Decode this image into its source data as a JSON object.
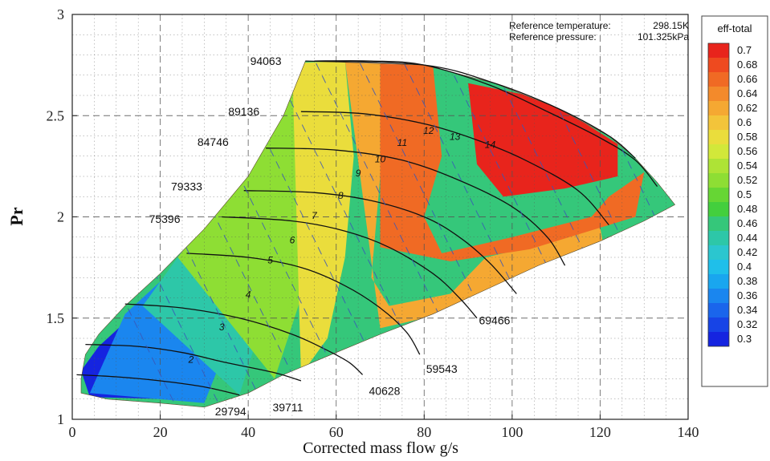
{
  "chart_data": {
    "type": "contour",
    "xlabel": "Corrected mass flow g/s",
    "ylabel": "Pr",
    "xlim": [
      0,
      140
    ],
    "ylim": [
      1,
      3
    ],
    "xticks": [
      "0",
      "20",
      "40",
      "60",
      "80",
      "100",
      "120",
      "140"
    ],
    "yticks": [
      "1",
      "1.5",
      "2",
      "2.5",
      "3"
    ],
    "grid": true,
    "annotations": [
      {
        "label": "Reference temperature:",
        "value": "298.15K"
      },
      {
        "label": "Reference pressure:",
        "value": "101.325kPa"
      }
    ],
    "colorbar": {
      "title": "eff-total",
      "levels": [
        "0.7",
        "0.68",
        "0.66",
        "0.64",
        "0.62",
        "0.6",
        "0.58",
        "0.56",
        "0.54",
        "0.52",
        "0.5",
        "0.48",
        "0.46",
        "0.44",
        "0.42",
        "0.4",
        "0.38",
        "0.36",
        "0.34",
        "0.32",
        "0.3"
      ],
      "colors": [
        "#e8241c",
        "#ee4a1f",
        "#f06a24",
        "#f38a2b",
        "#f5a832",
        "#f3c43a",
        "#eadd3c",
        "#d2e83a",
        "#aee336",
        "#8ede34",
        "#66d634",
        "#43cf3d",
        "#35c77a",
        "#2dc7a8",
        "#2bc6cf",
        "#1fbfea",
        "#19a6ef",
        "#1a86ef",
        "#1a65ec",
        "#1744e6",
        "#1524e0"
      ]
    },
    "speed_lines": [
      {
        "label": "29794",
        "points": [
          [
            1,
            1.22
          ],
          [
            10,
            1.21
          ],
          [
            20,
            1.19
          ],
          [
            30,
            1.16
          ],
          [
            38,
            1.12
          ]
        ],
        "label_at": [
          36,
          1.04
        ]
      },
      {
        "label": "39711",
        "points": [
          [
            3,
            1.37
          ],
          [
            15,
            1.36
          ],
          [
            25,
            1.33
          ],
          [
            35,
            1.28
          ],
          [
            46,
            1.23
          ],
          [
            52,
            1.19
          ]
        ],
        "label_at": [
          49,
          1.06
        ]
      },
      {
        "label": "40628",
        "points": [
          [
            12,
            1.57
          ],
          [
            25,
            1.55
          ],
          [
            38,
            1.5
          ],
          [
            50,
            1.42
          ],
          [
            58,
            1.34
          ],
          [
            63,
            1.28
          ],
          [
            66,
            1.22
          ]
        ],
        "label_at": [
          71,
          1.14
        ]
      },
      {
        "label": "59543",
        "points": [
          [
            26,
            1.82
          ],
          [
            40,
            1.8
          ],
          [
            52,
            1.75
          ],
          [
            62,
            1.66
          ],
          [
            70,
            1.55
          ],
          [
            76,
            1.43
          ],
          [
            79,
            1.32
          ]
        ],
        "label_at": [
          84,
          1.25
        ]
      },
      {
        "label": "69466",
        "points": [
          [
            34,
            2.0
          ],
          [
            50,
            1.98
          ],
          [
            62,
            1.93
          ],
          [
            72,
            1.85
          ],
          [
            82,
            1.72
          ],
          [
            88,
            1.6
          ],
          [
            92,
            1.5
          ]
        ],
        "label_at": [
          96,
          1.49
        ]
      },
      {
        "label": "75396",
        "points": [
          [
            39,
            2.13
          ],
          [
            55,
            2.12
          ],
          [
            68,
            2.08
          ],
          [
            80,
            2.0
          ],
          [
            88,
            1.9
          ],
          [
            95,
            1.77
          ],
          [
            101,
            1.62
          ]
        ],
        "label_at": [
          21,
          1.99
        ]
      },
      {
        "label": "79333",
        "points": [
          [
            44,
            2.34
          ],
          [
            60,
            2.33
          ],
          [
            75,
            2.28
          ],
          [
            88,
            2.18
          ],
          [
            100,
            2.05
          ],
          [
            108,
            1.9
          ],
          [
            112,
            1.76
          ]
        ],
        "label_at": [
          26,
          2.15
        ]
      },
      {
        "label": "84746",
        "points": [
          [
            52,
            2.52
          ],
          [
            66,
            2.51
          ],
          [
            80,
            2.46
          ],
          [
            92,
            2.38
          ],
          [
            103,
            2.28
          ],
          [
            115,
            2.13
          ],
          [
            122,
            1.96
          ]
        ],
        "label_at": [
          32,
          2.37
        ]
      },
      {
        "label": "89136",
        "points": [
          [
            55,
            2.77
          ],
          [
            68,
            2.77
          ],
          [
            80,
            2.75
          ],
          [
            95,
            2.65
          ],
          [
            108,
            2.52
          ],
          [
            120,
            2.39
          ],
          [
            128,
            2.28
          ],
          [
            133,
            2.15
          ]
        ],
        "label_at": [
          39,
          2.52
        ]
      },
      {
        "label": "94063",
        "points": [
          [
            53,
            2.77
          ],
          [
            62,
            2.77
          ]
        ],
        "label_at": [
          44,
          2.77
        ]
      }
    ],
    "efficiency_line_labels": [
      "2",
      "3",
      "4",
      "5",
      "6",
      "7",
      "8",
      "9",
      "10",
      "11",
      "12",
      "13",
      "14"
    ],
    "regions": [
      {
        "eff": 0.3,
        "points": [
          [
            2,
            1.24
          ],
          [
            6,
            1.36
          ],
          [
            14,
            1.52
          ],
          [
            20,
            1.4
          ],
          [
            24,
            1.22
          ],
          [
            22,
            1.1
          ],
          [
            4,
            1.11
          ]
        ]
      },
      {
        "eff": 0.36,
        "points": [
          [
            4,
            1.13
          ],
          [
            12,
            1.52
          ],
          [
            22,
            1.72
          ],
          [
            30,
            1.62
          ],
          [
            34,
            1.3
          ],
          [
            30,
            1.08
          ]
        ]
      },
      {
        "eff": 0.44,
        "points": [
          [
            16,
            1.56
          ],
          [
            26,
            1.86
          ],
          [
            34,
            2.02
          ],
          [
            40,
            1.84
          ],
          [
            42,
            1.4
          ],
          [
            38,
            1.12
          ]
        ]
      },
      {
        "eff": 0.52,
        "points": [
          [
            24,
            1.8
          ],
          [
            34,
            2.08
          ],
          [
            44,
            2.4
          ],
          [
            50,
            2.7
          ],
          [
            52,
            2.76
          ],
          [
            56,
            2.6
          ],
          [
            54,
            2.1
          ],
          [
            52,
            1.6
          ],
          [
            46,
            1.2
          ]
        ]
      },
      {
        "eff": 0.58,
        "points": [
          [
            50,
            2.76
          ],
          [
            62,
            2.77
          ],
          [
            64,
            2.3
          ],
          [
            62,
            1.8
          ],
          [
            58,
            1.4
          ],
          [
            52,
            1.22
          ]
        ]
      },
      {
        "eff": 0.62,
        "points": [
          [
            62,
            2.77
          ],
          [
            72,
            2.76
          ],
          [
            70,
            2.2
          ],
          [
            68,
            1.7
          ],
          [
            72,
            1.56
          ],
          [
            86,
            1.62
          ],
          [
            94,
            1.8
          ],
          [
            104,
            1.85
          ],
          [
            120,
            1.95
          ],
          [
            122,
            1.7
          ],
          [
            90,
            1.55
          ],
          [
            70,
            1.45
          ]
        ]
      },
      {
        "eff": 0.66,
        "points": [
          [
            70,
            2.76
          ],
          [
            82,
            2.75
          ],
          [
            84,
            2.3
          ],
          [
            80,
            2.0
          ],
          [
            84,
            1.82
          ],
          [
            100,
            1.9
          ],
          [
            118,
            2.0
          ],
          [
            122,
            2.1
          ],
          [
            130,
            2.22
          ],
          [
            128,
            2.0
          ],
          [
            104,
            1.84
          ],
          [
            86,
            1.78
          ],
          [
            70,
            1.85
          ]
        ]
      },
      {
        "eff": 0.7,
        "points": [
          [
            90,
            2.66
          ],
          [
            108,
            2.58
          ],
          [
            124,
            2.36
          ],
          [
            124,
            2.2
          ],
          [
            112,
            2.14
          ],
          [
            98,
            2.1
          ],
          [
            92,
            2.26
          ]
        ]
      }
    ],
    "domain": [
      [
        2,
        1.2
      ],
      [
        3,
        1.32
      ],
      [
        6,
        1.42
      ],
      [
        12,
        1.56
      ],
      [
        20,
        1.72
      ],
      [
        30,
        1.94
      ],
      [
        40,
        2.2
      ],
      [
        48,
        2.5
      ],
      [
        53,
        2.77
      ],
      [
        80,
        2.75
      ],
      [
        96,
        2.66
      ],
      [
        110,
        2.54
      ],
      [
        122,
        2.4
      ],
      [
        128,
        2.29
      ],
      [
        133,
        2.17
      ],
      [
        137,
        2.06
      ],
      [
        130,
        1.98
      ],
      [
        120,
        1.88
      ],
      [
        106,
        1.76
      ],
      [
        93,
        1.63
      ],
      [
        82,
        1.52
      ],
      [
        70,
        1.42
      ],
      [
        60,
        1.33
      ],
      [
        48,
        1.22
      ],
      [
        40,
        1.13
      ],
      [
        30,
        1.06
      ],
      [
        20,
        1.08
      ],
      [
        8,
        1.1
      ],
      [
        2,
        1.13
      ]
    ]
  }
}
